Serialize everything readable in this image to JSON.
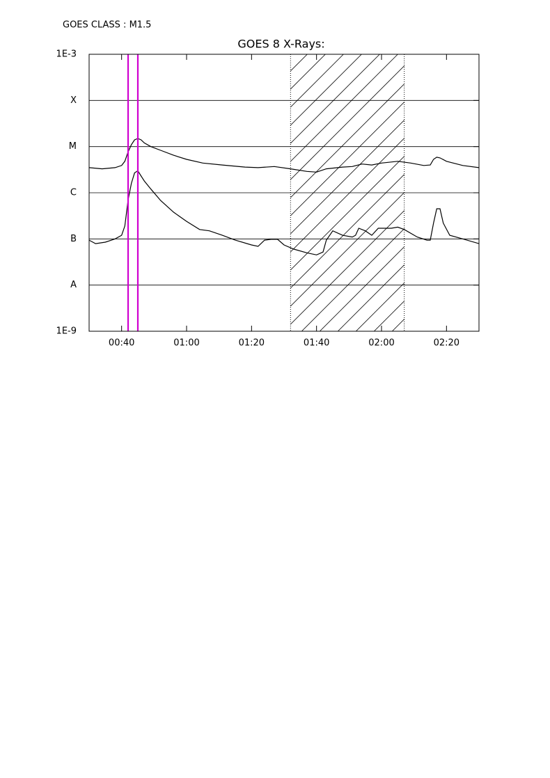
{
  "chart_data": {
    "type": "line",
    "header": "GOES CLASS : M1.5",
    "title": "GOES 8 X-Rays:",
    "yscale": "log",
    "ylim": [
      1e-09,
      0.001
    ],
    "yticks": [
      {
        "value": 0.001,
        "label": "1E-3"
      },
      {
        "value": 0.0001,
        "label": "X"
      },
      {
        "value": 1e-05,
        "label": "M"
      },
      {
        "value": 1e-06,
        "label": "C"
      },
      {
        "value": 1e-07,
        "label": "B"
      },
      {
        "value": 1e-08,
        "label": "A"
      },
      {
        "value": 1e-09,
        "label": "1E-9"
      }
    ],
    "xlim": [
      "00:30",
      "02:30"
    ],
    "xticks": [
      "00:40",
      "01:00",
      "01:20",
      "01:40",
      "02:00",
      "02:20"
    ],
    "grid": true,
    "series": [
      {
        "color": "#000000",
        "x": [
          "00:30",
          "00:34",
          "00:38",
          "00:40",
          "00:41",
          "00:42",
          "00:43",
          "00:44",
          "00:45",
          "00:46",
          "00:47",
          "00:49",
          "00:52",
          "00:56",
          "01:00",
          "01:05",
          "01:11",
          "01:18",
          "01:22",
          "01:27",
          "01:32",
          "01:37",
          "01:40",
          "01:43",
          "01:48",
          "01:51",
          "01:54",
          "01:57",
          "02:00",
          "02:05",
          "02:09",
          "02:13",
          "02:15",
          "02:16",
          "02:17",
          "02:18",
          "02:20",
          "02:25",
          "02:30"
        ],
        "values": [
          3.5e-06,
          3.3e-06,
          3.5e-06,
          3.9e-06,
          4.8e-06,
          7.7e-06,
          1.1e-05,
          1.4e-05,
          1.5e-05,
          1.4e-05,
          1.2e-05,
          1e-05,
          8.3e-06,
          6.5e-06,
          5.3e-06,
          4.4e-06,
          4e-06,
          3.6e-06,
          3.5e-06,
          3.7e-06,
          3.3e-06,
          2.9e-06,
          2.8e-06,
          3.3e-06,
          3.6e-06,
          3.7e-06,
          4.2e-06,
          4e-06,
          4.4e-06,
          4.8e-06,
          4.4e-06,
          3.9e-06,
          4e-06,
          5.3e-06,
          5.9e-06,
          5.7e-06,
          4.8e-06,
          3.9e-06,
          3.5e-06
        ]
      },
      {
        "color": "#000000",
        "x": [
          "00:30",
          "00:32",
          "00:35",
          "00:38",
          "00:40",
          "00:41",
          "00:42",
          "00:43",
          "00:44",
          "00:45",
          "00:46",
          "00:47",
          "00:49",
          "00:52",
          "00:56",
          "01:00",
          "01:04",
          "01:07",
          "01:11",
          "01:15",
          "01:20",
          "01:22",
          "01:24",
          "01:26",
          "01:28",
          "01:30",
          "01:33",
          "01:37",
          "01:40",
          "01:42",
          "01:43",
          "01:45",
          "01:48",
          "01:51",
          "01:52",
          "01:53",
          "01:55",
          "01:57",
          "01:59",
          "02:03",
          "02:05",
          "02:07",
          "02:11",
          "02:14",
          "02:15",
          "02:16",
          "02:17",
          "02:18",
          "02:19",
          "02:21",
          "02:25",
          "02:30"
        ],
        "values": [
          9.4e-08,
          7.9e-08,
          8.5e-08,
          1e-07,
          1.2e-07,
          1.9e-07,
          7e-07,
          1.6e-06,
          2.7e-06,
          3e-06,
          2.3e-06,
          1.8e-06,
          1.2e-06,
          6.8e-07,
          3.8e-07,
          2.4e-07,
          1.6e-07,
          1.5e-07,
          1.2e-07,
          9.4e-08,
          7.4e-08,
          6.9e-08,
          9.4e-08,
          9.8e-08,
          9.8e-08,
          7.4e-08,
          6e-08,
          5e-08,
          4.5e-08,
          5.2e-08,
          9.4e-08,
          1.5e-07,
          1.2e-07,
          1.1e-07,
          1.2e-07,
          1.7e-07,
          1.5e-07,
          1.2e-07,
          1.7e-07,
          1.7e-07,
          1.8e-07,
          1.6e-07,
          1.1e-07,
          9.4e-08,
          9.4e-08,
          2.2e-07,
          4.5e-07,
          4.5e-07,
          2.2e-07,
          1.2e-07,
          1e-07,
          7.9e-08
        ]
      }
    ],
    "flare_lines": {
      "color": "#d000d0",
      "x": [
        "00:42",
        "00:45"
      ]
    },
    "shaded_interval": [
      "01:32",
      "02:07"
    ]
  }
}
